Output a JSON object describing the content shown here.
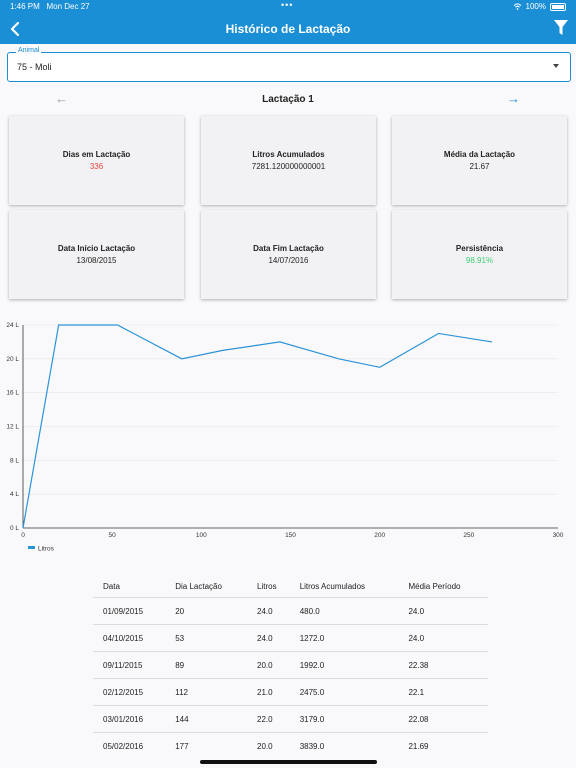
{
  "status": {
    "time": "1:46 PM",
    "date": "Mon Dec 27",
    "battery": "100%"
  },
  "header": {
    "title": "Histórico de Lactação",
    "back_icon": "chevron-left-icon",
    "filter_icon": "filter-icon"
  },
  "animal": {
    "label": "Animal",
    "value": "75 - Moli"
  },
  "lactation": {
    "title": "Lactação 1"
  },
  "cards": [
    {
      "title": "Dias em Lactação",
      "value": "336",
      "color": "#e0463c"
    },
    {
      "title": "Litros Acumulados",
      "value": "7281.120000000001",
      "color": "#222222"
    },
    {
      "title": "Média da Lactação",
      "value": "21.67",
      "color": "#222222"
    },
    {
      "title": "Data Início Lactação",
      "value": "13/08/2015",
      "color": "#222222"
    },
    {
      "title": "Data Fim Lactação",
      "value": "14/07/2016",
      "color": "#222222"
    },
    {
      "title": "Persistência",
      "value": "98.91%",
      "color": "#3fcf77"
    }
  ],
  "chart_data": {
    "type": "line",
    "x": [
      0,
      20,
      53,
      89,
      112,
      144,
      177,
      200,
      233,
      263
    ],
    "series": [
      {
        "name": "Litros",
        "values": [
          0,
          24,
          24,
          20,
          21,
          22,
          20,
          19,
          23,
          22
        ]
      }
    ],
    "xlim": [
      0,
      300
    ],
    "ylim": [
      0,
      24
    ],
    "xticks": [
      "0",
      "50",
      "100",
      "150",
      "200",
      "250",
      "300"
    ],
    "yticks": [
      "0 L",
      "4 L",
      "8 L",
      "12 L",
      "16 L",
      "20 L",
      "24 L"
    ],
    "grid": true,
    "legend": "bottom-left",
    "color": "#2b93d8"
  },
  "table": {
    "headers": [
      "Data",
      "Dia Lactação",
      "Litros",
      "Litros Acumulados",
      "Média Período"
    ],
    "rows": [
      [
        "01/09/2015",
        "20",
        "24.0",
        "480.0",
        "24.0"
      ],
      [
        "04/10/2015",
        "53",
        "24.0",
        "1272.0",
        "24.0"
      ],
      [
        "09/11/2015",
        "89",
        "20.0",
        "1992.0",
        "22.38"
      ],
      [
        "02/12/2015",
        "112",
        "21.0",
        "2475.0",
        "22.1"
      ],
      [
        "03/01/2016",
        "144",
        "22.0",
        "3179.0",
        "22.08"
      ],
      [
        "05/02/2016",
        "177",
        "20.0",
        "3839.0",
        "21.69"
      ]
    ]
  }
}
